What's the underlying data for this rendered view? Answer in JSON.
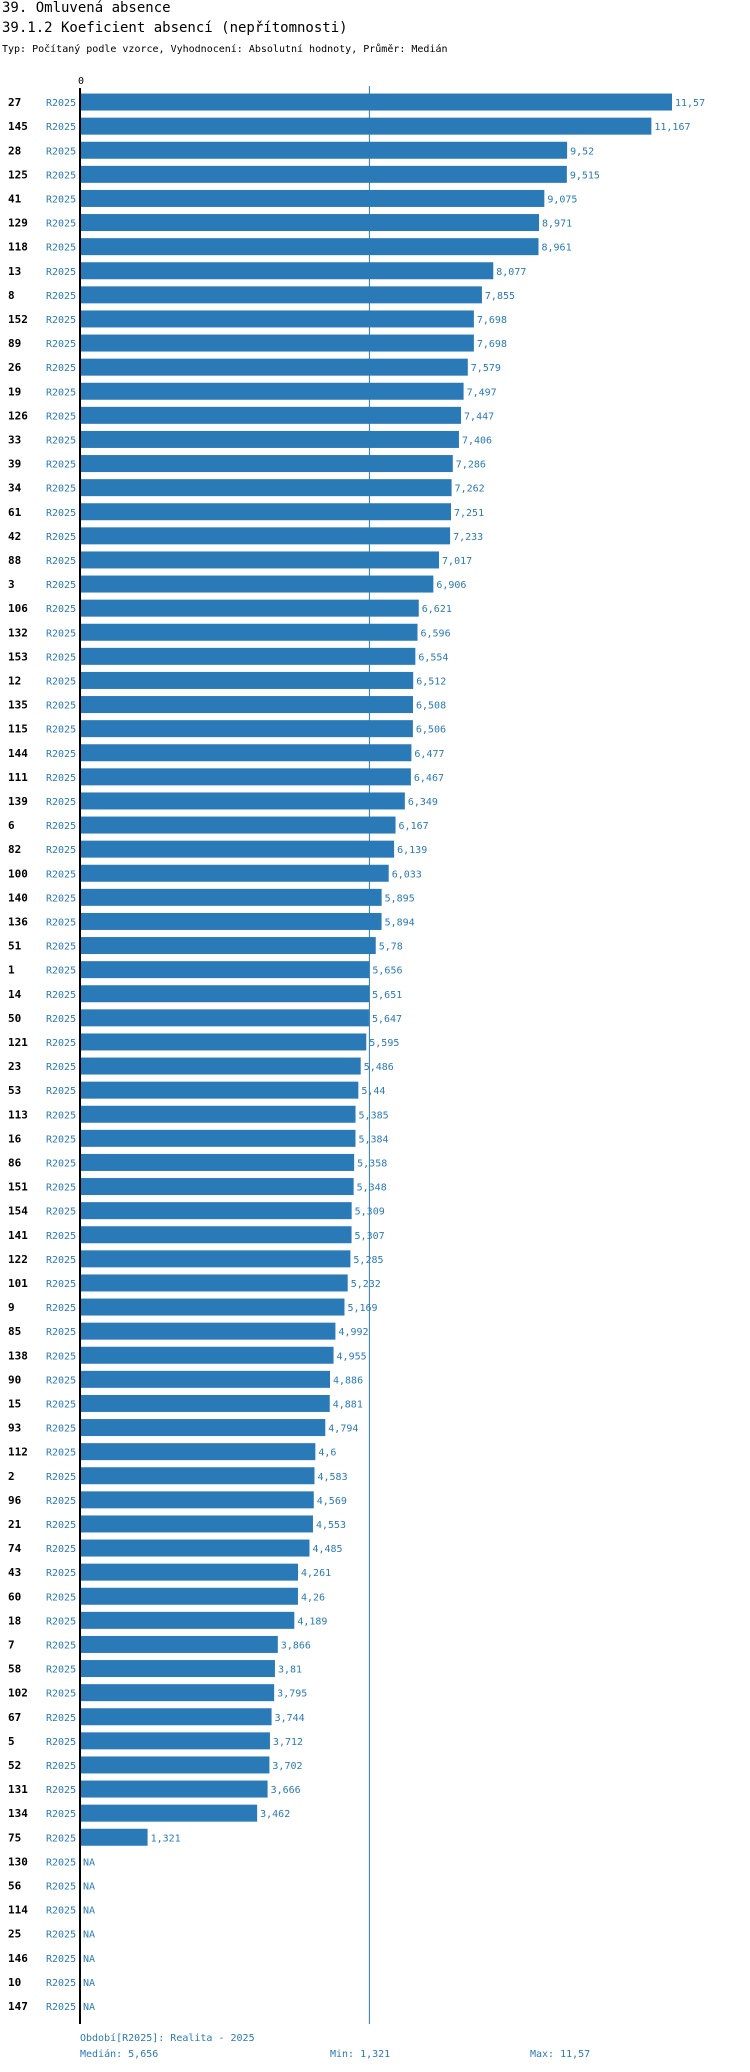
{
  "header": {
    "title": "39. Omluvená absence",
    "subtitle": "39.1.2 Koeficient absencí (nepřítomnosti)",
    "type_line": "Typ: Počítaný podle vzorce, Vyhodnocení: Absolutní hodnoty, Průměr: Medián"
  },
  "footer": {
    "period": "Období[R2025]: Realita - 2025",
    "median": "Medián: 5,656",
    "min": "Min: 1,321",
    "max": "Max: 11,57"
  },
  "colors": {
    "bar": "#2a7ab8",
    "label": "#2a7ab8",
    "axis": "#000000",
    "median_line": "#2a7ab8"
  },
  "chart_data": {
    "type": "bar",
    "orientation": "horizontal",
    "series_label": "R2025",
    "axis_zero_label": "0",
    "xlim": [
      0,
      11.57
    ],
    "median": 5.656,
    "categories": [
      "27",
      "145",
      "28",
      "125",
      "41",
      "129",
      "118",
      "13",
      "8",
      "152",
      "89",
      "26",
      "19",
      "126",
      "33",
      "39",
      "34",
      "61",
      "42",
      "88",
      "3",
      "106",
      "132",
      "153",
      "12",
      "135",
      "115",
      "144",
      "111",
      "139",
      "6",
      "82",
      "100",
      "140",
      "136",
      "51",
      "1",
      "14",
      "50",
      "121",
      "23",
      "53",
      "113",
      "16",
      "86",
      "151",
      "154",
      "141",
      "122",
      "101",
      "9",
      "85",
      "138",
      "90",
      "15",
      "93",
      "112",
      "2",
      "96",
      "21",
      "74",
      "43",
      "60",
      "18",
      "7",
      "58",
      "102",
      "67",
      "5",
      "52",
      "131",
      "134",
      "75",
      "130",
      "56",
      "114",
      "25",
      "146",
      "10",
      "147"
    ],
    "values": [
      11.57,
      11.167,
      9.52,
      9.515,
      9.075,
      8.971,
      8.961,
      8.077,
      7.855,
      7.698,
      7.698,
      7.579,
      7.497,
      7.447,
      7.406,
      7.286,
      7.262,
      7.251,
      7.233,
      7.017,
      6.906,
      6.621,
      6.596,
      6.554,
      6.512,
      6.508,
      6.506,
      6.477,
      6.467,
      6.349,
      6.167,
      6.139,
      6.033,
      5.895,
      5.894,
      5.78,
      5.656,
      5.651,
      5.647,
      5.595,
      5.486,
      5.44,
      5.385,
      5.384,
      5.358,
      5.348,
      5.309,
      5.307,
      5.285,
      5.232,
      5.169,
      4.992,
      4.955,
      4.886,
      4.881,
      4.794,
      4.6,
      4.583,
      4.569,
      4.553,
      4.485,
      4.261,
      4.26,
      4.189,
      3.866,
      3.81,
      3.795,
      3.744,
      3.712,
      3.702,
      3.666,
      3.462,
      1.321,
      null,
      null,
      null,
      null,
      null,
      null,
      null
    ],
    "value_labels": [
      "11,57",
      "11,167",
      "9,52",
      "9,515",
      "9,075",
      "8,971",
      "8,961",
      "8,077",
      "7,855",
      "7,698",
      "7,698",
      "7,579",
      "7,497",
      "7,447",
      "7,406",
      "7,286",
      "7,262",
      "7,251",
      "7,233",
      "7,017",
      "6,906",
      "6,621",
      "6,596",
      "6,554",
      "6,512",
      "6,508",
      "6,506",
      "6,477",
      "6,467",
      "6,349",
      "6,167",
      "6,139",
      "6,033",
      "5,895",
      "5,894",
      "5,78",
      "5,656",
      "5,651",
      "5,647",
      "5,595",
      "5,486",
      "5,44",
      "5,385",
      "5,384",
      "5,358",
      "5,348",
      "5,309",
      "5,307",
      "5,285",
      "5,232",
      "5,169",
      "4,992",
      "4,955",
      "4,886",
      "4,881",
      "4,794",
      "4,6",
      "4,583",
      "4,569",
      "4,553",
      "4,485",
      "4,261",
      "4,26",
      "4,189",
      "3,866",
      "3,81",
      "3,795",
      "3,744",
      "3,712",
      "3,702",
      "3,666",
      "3,462",
      "1,321",
      "NA",
      "NA",
      "NA",
      "NA",
      "NA",
      "NA",
      "NA"
    ]
  }
}
